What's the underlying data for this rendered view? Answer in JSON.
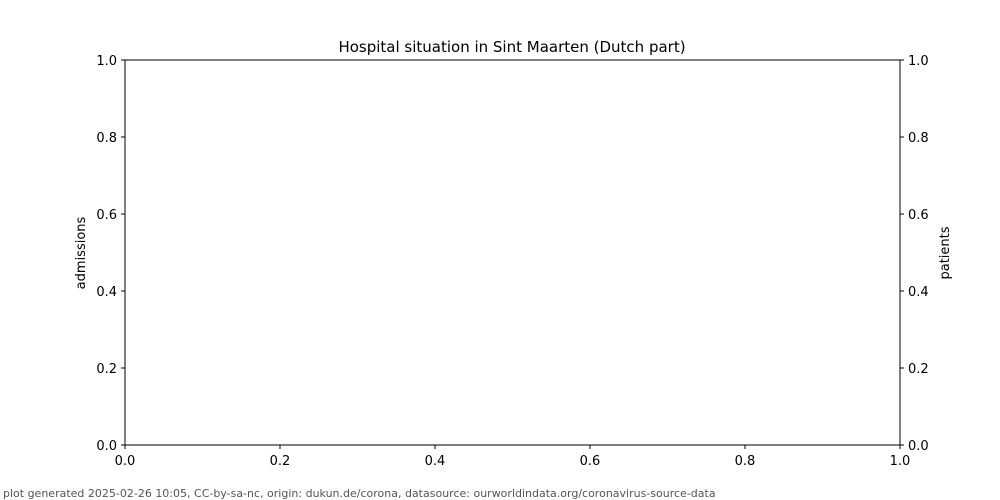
{
  "chart_data": {
    "type": "line",
    "title": "Hospital situation in Sint Maarten (Dutch part)",
    "xlabel": "",
    "ylabel": "admissions",
    "ylabel_right": "patients",
    "xlim": [
      0.0,
      1.0
    ],
    "ylim": [
      0.0,
      1.0
    ],
    "ylim_right": [
      0.0,
      1.0
    ],
    "x_ticks": [
      "0.0",
      "0.2",
      "0.4",
      "0.6",
      "0.8",
      "1.0"
    ],
    "y_ticks": [
      "0.0",
      "0.2",
      "0.4",
      "0.6",
      "0.8",
      "1.0"
    ],
    "y_ticks_right": [
      "0.0",
      "0.2",
      "0.4",
      "0.6",
      "0.8",
      "1.0"
    ],
    "series": [],
    "grid": false
  },
  "footer": "plot generated 2025-02-26 10:05, CC-by-sa-nc, origin: dukun.de/corona, datasource: ourworldindata.org/coronavirus-source-data"
}
